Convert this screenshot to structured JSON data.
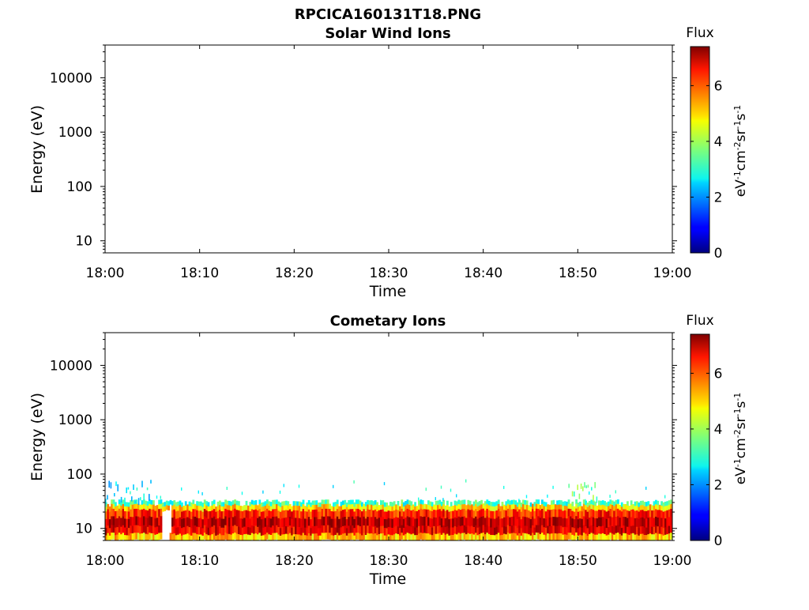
{
  "figure_title": "RPCICA160131T18.PNG",
  "chart_data": [
    {
      "type": "heatmap",
      "title": "Solar Wind Ions",
      "xlabel": "Time",
      "ylabel": "Energy (eV)",
      "x_ticks": [
        "18:00",
        "18:10",
        "18:20",
        "18:30",
        "18:40",
        "18:50",
        "19:00"
      ],
      "xlim": [
        "18:00",
        "19:00"
      ],
      "y_scale": "log",
      "y_ticks": [
        "10",
        "100",
        "1000",
        "10000"
      ],
      "ylim": [
        6,
        40000
      ],
      "colorbar": {
        "title": "Flux",
        "label": "eV-1cm-2sr-1s-1",
        "ticks": [
          "0",
          "2",
          "4",
          "6"
        ],
        "range": [
          0,
          7.4
        ]
      },
      "data_description": "empty",
      "bands": []
    },
    {
      "type": "heatmap",
      "title": "Cometary Ions",
      "xlabel": "Time",
      "ylabel": "Energy (eV)",
      "x_ticks": [
        "18:00",
        "18:10",
        "18:20",
        "18:30",
        "18:40",
        "18:50",
        "19:00"
      ],
      "xlim": [
        "18:00",
        "19:00"
      ],
      "y_scale": "log",
      "y_ticks": [
        "10",
        "100",
        "1000",
        "10000"
      ],
      "ylim": [
        6,
        40000
      ],
      "colorbar": {
        "title": "Flux",
        "label": "eV-1cm-2sr-1s-1",
        "ticks": [
          "0",
          "2",
          "4",
          "6"
        ],
        "range": [
          0,
          7.4
        ]
      },
      "bands": [
        {
          "e_min": 6,
          "e_max": 8,
          "flux": 5.0
        },
        {
          "e_min": 8,
          "e_max": 11,
          "flux": 6.6
        },
        {
          "e_min": 11,
          "e_max": 16,
          "flux": 7.0
        },
        {
          "e_min": 16,
          "e_max": 22,
          "flux": 6.2
        },
        {
          "e_min": 22,
          "e_max": 27,
          "flux": 4.9
        },
        {
          "e_min": 27,
          "e_max": 32,
          "flux": 3.2
        }
      ],
      "patches": [
        {
          "t_start": "18:00",
          "t_end": "18:05",
          "e_min": 32,
          "e_max": 80,
          "flux": 2.6
        },
        {
          "t_start": "18:49",
          "t_end": "18:52",
          "e_min": 32,
          "e_max": 80,
          "flux": 3.6
        }
      ],
      "gaps": [
        {
          "t_start": "18:06",
          "t_end": "18:07",
          "e_min": 6,
          "e_max": 30
        }
      ]
    }
  ]
}
